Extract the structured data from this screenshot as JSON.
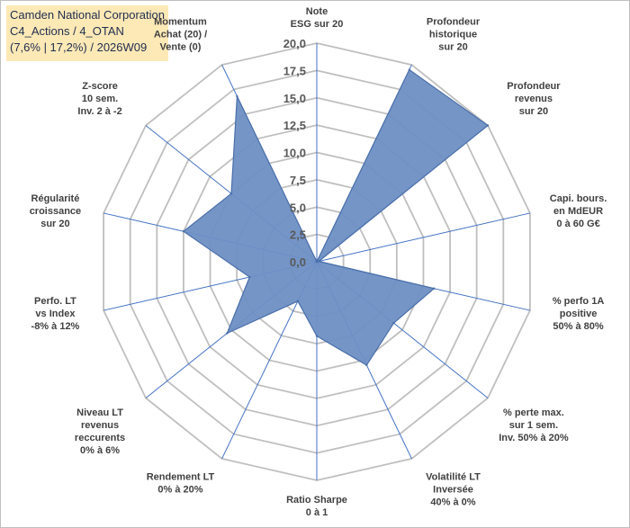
{
  "header": {
    "company": "Camden National Corporation",
    "category": "C4_Actions / 4_OTAN",
    "period": "(7,6% | 17,2%) / 2026W09"
  },
  "chart_data": {
    "type": "radar",
    "title": "Camden National Corporation",
    "rmin": 0,
    "rmax": 20,
    "ticks": [
      "0,0",
      "2,5",
      "5,0",
      "7,5",
      "10,0",
      "12,5",
      "15,0",
      "17,5",
      "20,0"
    ],
    "axes": [
      {
        "label": [
          "Note",
          "ESG sur 20"
        ],
        "value": 0
      },
      {
        "label": [
          "Profondeur",
          "historique",
          "sur 20"
        ],
        "value": 19.5
      },
      {
        "label": [
          "Profondeur",
          "revenus",
          "sur 20"
        ],
        "value": 20.0
      },
      {
        "label": [
          "Capi. bours.",
          "en MdEUR",
          "0 à 60 G€"
        ],
        "value": 0.2
      },
      {
        "label": [
          "% perfo 1A",
          "positive",
          "50% à 80%"
        ],
        "value": 11.0
      },
      {
        "label": [
          "% perte max.",
          "sur 1 sem.",
          "Inv. 50% à 20%"
        ],
        "value": 9.0
      },
      {
        "label": [
          "Volatilité LT",
          "Inversée",
          "40% à 0%"
        ],
        "value": 10.5
      },
      {
        "label": [
          "Ratio Sharpe",
          "0 à 1"
        ],
        "value": 6.8
      },
      {
        "label": [
          "Rendement LT",
          "0% à 20%"
        ],
        "value": 4.0
      },
      {
        "label": [
          "Niveau LT",
          "revenus",
          "reccurents",
          "0% à 6%"
        ],
        "value": 10.5
      },
      {
        "label": [
          "Perfo. LT",
          "vs Index",
          "-8% à 12%"
        ],
        "value": 6.3
      },
      {
        "label": [
          "Régularité",
          "croissance",
          "sur 20"
        ],
        "value": 12.5
      },
      {
        "label": [
          "Z-score",
          "10 sem.",
          "Inv. 2 à -2"
        ],
        "value": 10.0
      },
      {
        "label": [
          "Momentum",
          "Achat (20) /",
          "Vente (0)"
        ],
        "value": 16.8
      }
    ],
    "colors": {
      "fill": "#6e8fc4",
      "stroke": "#4a6fa9",
      "grid": "#bfbfbf",
      "spoke": "#4472c4"
    }
  }
}
